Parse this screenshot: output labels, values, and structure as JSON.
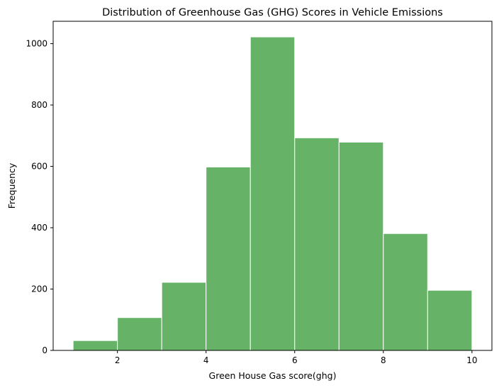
{
  "chart_data": {
    "type": "bar",
    "title": "Distribution of Greenhouse Gas (GHG) Scores in Vehicle Emissions",
    "xlabel": "Green House Gas score(ghg)",
    "ylabel": "Frequency",
    "bin_edges": [
      1,
      2,
      3,
      4,
      5,
      6,
      7,
      8,
      9,
      10
    ],
    "values": [
      32,
      107,
      222,
      598,
      1022,
      693,
      679,
      381,
      196
    ],
    "xlim": [
      0.55,
      10.45
    ],
    "ylim": [
      0,
      1073
    ],
    "xticks": [
      2,
      4,
      6,
      8,
      10
    ],
    "yticks": [
      0,
      200,
      400,
      600,
      800,
      1000
    ],
    "bar_color": "#66b266",
    "edge_color": "#ffffff",
    "grid": false,
    "legend": "none"
  }
}
